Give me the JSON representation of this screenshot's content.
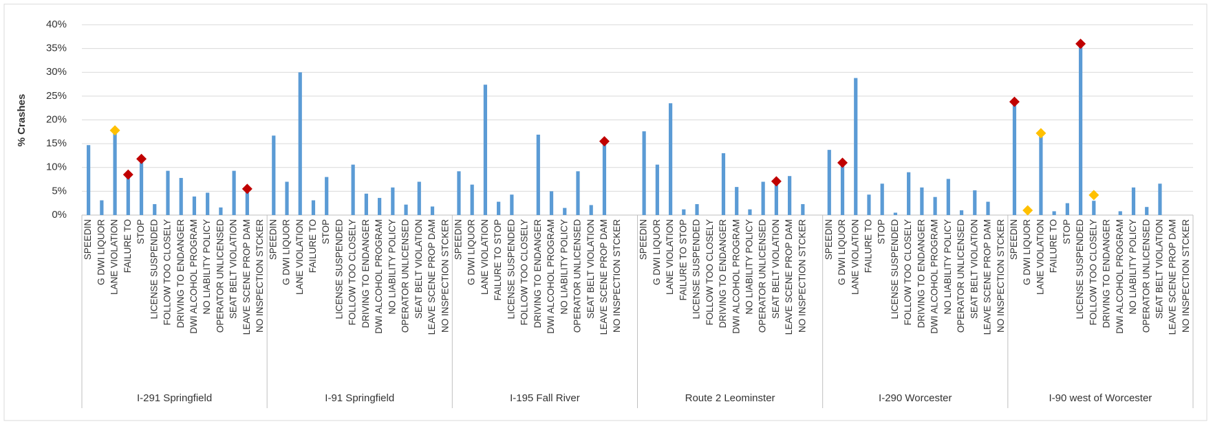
{
  "chart_data": {
    "type": "bar",
    "y_label": "% Crashes",
    "ylim": [
      0,
      40
    ],
    "yticks": [
      {
        "value": 0,
        "label": "0%"
      },
      {
        "value": 5,
        "label": "5%"
      },
      {
        "value": 10,
        "label": "10%"
      },
      {
        "value": 15,
        "label": "15%"
      },
      {
        "value": 20,
        "label": "20%"
      },
      {
        "value": 25,
        "label": "25%"
      },
      {
        "value": 30,
        "label": "30%"
      },
      {
        "value": 35,
        "label": "35%"
      },
      {
        "value": 40,
        "label": "40%"
      }
    ],
    "grid": true,
    "groups": [
      {
        "label": "I-291 Springfield",
        "categories": [
          "SPEEDIN",
          "G DWI LIQUOR",
          "LANE VIOLATION",
          "FAILURE TO",
          "STOP",
          "LICENSE SUSPENDED",
          "FOLLOW TOO CLOSELY",
          "DRIVING TO ENDANGER",
          "DWI ALCOHOL PROGRAM",
          "NO LIABILITY POLICY",
          "OPERATOR UNLICENSED",
          "SEAT BELT VIOLATION",
          "LEAVE SCENE PROP DAM",
          "NO INSPECTION STCKER"
        ]
      },
      {
        "label": "I-91 Springfield",
        "categories": [
          "SPEEDIN",
          "G DWI LIQUOR",
          "LANE VIOLATION",
          "FAILURE TO",
          "STOP",
          "LICENSE SUSPENDED",
          "FOLLOW TOO CLOSELY",
          "DRIVING TO ENDANGER",
          "DWI ALCOHOL PROGRAM",
          "NO LIABILITY POLICY",
          "OPERATOR UNLICENSED",
          "SEAT BELT VIOLATION",
          "LEAVE SCENE PROP DAM",
          "NO INSPECTION STCKER"
        ]
      },
      {
        "label": "I-195 Fall River",
        "categories": [
          "SPEEDIN",
          "G DWI LIQUOR",
          "LANE VIOLATION",
          "FAILURE TO STOP",
          "LICENSE SUSPENDED",
          "FOLLOW TOO CLOSELY",
          "DRIVING TO ENDANGER",
          "DWI ALCOHOL PROGRAM",
          "NO LIABILITY POLICY",
          "OPERATOR UNLICENSED",
          "SEAT BELT VIOLATION",
          "LEAVE SCENE PROP DAM",
          "NO INSPECTION STCKER",
          null
        ]
      },
      {
        "label": "Route 2 Leominster",
        "categories": [
          "SPEEDIN",
          "G DWI LIQUOR",
          "LANE VIOLATION",
          "FAILURE TO STOP",
          "LICENSE SUSPENDED",
          "FOLLOW TOO CLOSELY",
          "DRIVING TO ENDANGER",
          "DWI ALCOHOL PROGRAM",
          "NO LIABILITY POLICY",
          "OPERATOR UNLICENSED",
          "SEAT BELT VIOLATION",
          "LEAVE SCENE PROP DAM",
          "NO INSPECTION STCKER",
          null
        ]
      },
      {
        "label": "I-290 Worcester",
        "categories": [
          "SPEEDIN",
          "G DWI LIQUOR",
          "LANE VIOLATION",
          "FAILURE TO",
          "STOP",
          "LICENSE SUSPENDED",
          "FOLLOW TOO CLOSELY",
          "DRIVING TO ENDANGER",
          "DWI ALCOHOL PROGRAM",
          "NO LIABILITY POLICY",
          "OPERATOR UNLICENSED",
          "SEAT BELT VIOLATION",
          "LEAVE SCENE PROP DAM",
          "NO INSPECTION STCKER"
        ]
      },
      {
        "label": "I-90 west of Worcester",
        "categories": [
          "SPEEDIN",
          "G DWI LIQUOR",
          "LANE VIOLATION",
          "FAILURE TO",
          "STOP",
          "LICENSE SUSPENDED",
          "FOLLOW TOO CLOSELY",
          "DRIVING TO ENDANGER",
          "DWI ALCOHOL PROGRAM",
          "NO LIABILITY POLICY",
          "OPERATOR UNLICENSED",
          "SEAT BELT VIOLATION",
          "LEAVE SCENE PROP DAM",
          "NO INSPECTION STCKER"
        ]
      }
    ],
    "series": [
      {
        "kind": "bar",
        "color": "#5b9bd5",
        "values": [
          14.7,
          3.1,
          17.5,
          8,
          11,
          2.3,
          9.3,
          7.8,
          3.9,
          4.7,
          1.6,
          9.3,
          5,
          0,
          16.7,
          7,
          30,
          3.1,
          8,
          0,
          10.6,
          4.5,
          3.6,
          5.8,
          2.2,
          7,
          1.8,
          0,
          9.2,
          6.4,
          27.4,
          2.8,
          4.3,
          0,
          16.9,
          5,
          1.5,
          9.2,
          2.1,
          15.2,
          0,
          0,
          17.6,
          10.6,
          23.5,
          1.2,
          2.3,
          0,
          13,
          5.9,
          1.2,
          7,
          6.4,
          8.2,
          2.3,
          0,
          13.7,
          10.4,
          28.8,
          4.3,
          6.6,
          0.5,
          9,
          5.8,
          3.8,
          7.6,
          1,
          5.2,
          2.8,
          0,
          23.5,
          0,
          16.5,
          0.8,
          2.5,
          35.5,
          3,
          0,
          0.8,
          5.8,
          1.7,
          6.6,
          0,
          0
        ]
      },
      {
        "kind": "marker",
        "color": "#c00000",
        "values": [
          null,
          null,
          null,
          8.5,
          11.8,
          null,
          null,
          null,
          null,
          null,
          null,
          null,
          5.5,
          null,
          null,
          null,
          null,
          null,
          null,
          null,
          null,
          null,
          null,
          null,
          null,
          null,
          null,
          null,
          null,
          null,
          null,
          null,
          null,
          null,
          null,
          null,
          null,
          null,
          null,
          15.5,
          null,
          null,
          null,
          null,
          null,
          null,
          null,
          null,
          null,
          null,
          null,
          null,
          7.1,
          null,
          null,
          null,
          null,
          11,
          null,
          null,
          null,
          null,
          null,
          null,
          null,
          null,
          null,
          null,
          null,
          null,
          23.8,
          null,
          null,
          null,
          null,
          36,
          null,
          null,
          null,
          null,
          null,
          null,
          null,
          null
        ]
      },
      {
        "kind": "marker",
        "color": "#ffc000",
        "values": [
          null,
          null,
          17.8,
          null,
          null,
          null,
          null,
          null,
          null,
          null,
          null,
          null,
          null,
          null,
          null,
          null,
          null,
          null,
          null,
          null,
          null,
          null,
          null,
          null,
          null,
          null,
          null,
          null,
          null,
          null,
          null,
          null,
          null,
          null,
          null,
          null,
          null,
          null,
          null,
          null,
          null,
          null,
          null,
          null,
          null,
          null,
          null,
          null,
          null,
          null,
          null,
          null,
          null,
          null,
          null,
          null,
          null,
          null,
          null,
          null,
          null,
          null,
          null,
          null,
          null,
          null,
          null,
          null,
          null,
          null,
          null,
          1,
          17.2,
          null,
          null,
          null,
          4.2,
          null,
          null,
          null,
          null,
          null,
          null,
          null
        ]
      }
    ]
  }
}
